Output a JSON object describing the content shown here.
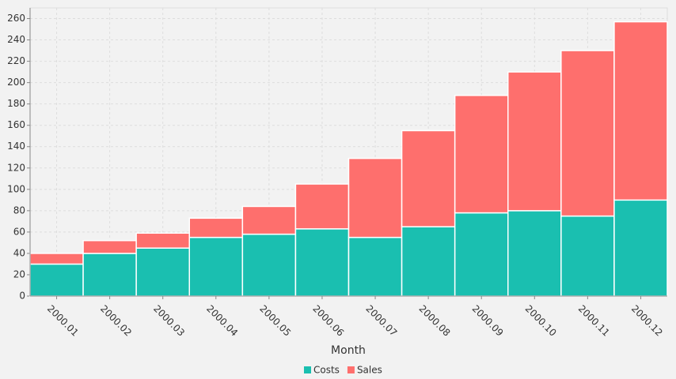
{
  "chart_data": {
    "type": "stacked-bar",
    "x_label": "Month",
    "categories": [
      "2000.01",
      "2000.02",
      "2000.03",
      "2000.04",
      "2000.05",
      "2000.06",
      "2000.07",
      "2000.08",
      "2000.09",
      "2000.10",
      "2000.11",
      "2000.12"
    ],
    "series": [
      {
        "name": "Costs",
        "color": "#1abfb0",
        "values": [
          30,
          40,
          45,
          55,
          58,
          63,
          55,
          65,
          78,
          80,
          75,
          90
        ]
      },
      {
        "name": "Sales",
        "color": "#fe6f6d",
        "values": [
          10,
          12,
          14,
          18,
          26,
          42,
          74,
          90,
          110,
          130,
          155,
          167
        ]
      }
    ],
    "ylim": [
      0,
      270
    ],
    "yticks": [
      0,
      20,
      40,
      60,
      80,
      100,
      120,
      140,
      160,
      180,
      200,
      220,
      240,
      260
    ],
    "grid": true,
    "legend": "bottom"
  }
}
